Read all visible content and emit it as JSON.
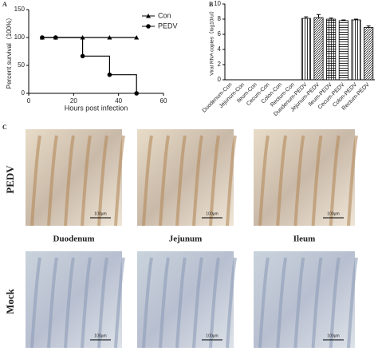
{
  "chart_data": [
    {
      "type": "line",
      "panel": "A",
      "step": true,
      "xlabel": "Hours post infection",
      "ylabel": "Percent survival（100%）",
      "xlim": [
        0,
        60
      ],
      "xticks": [
        0,
        20,
        40,
        60
      ],
      "ylim": [
        0,
        150
      ],
      "yticks": [
        0,
        50,
        100,
        150
      ],
      "legend": "top-right",
      "series": [
        {
          "name": "Con",
          "color": "#000000",
          "marker": "triangle",
          "x": [
            6,
            12,
            24,
            36,
            48
          ],
          "values": [
            100,
            100,
            100,
            100,
            100
          ]
        },
        {
          "name": "PEDV",
          "color": "#000000",
          "marker": "circle",
          "x": [
            6,
            12,
            24,
            36,
            48
          ],
          "values": [
            100,
            100,
            66.7,
            33.3,
            0
          ]
        }
      ]
    },
    {
      "type": "bar",
      "panel": "B",
      "ylabel": "Viral RNA copies（log10/ul）",
      "ylim": [
        0,
        10
      ],
      "yticks": [
        0,
        2,
        4,
        6,
        8,
        10
      ],
      "color": "#000000",
      "categories": [
        "Duodenum-Con",
        "Jejunum-Con",
        "Ileum-Con",
        "Cecum-Con",
        "Colon-Con",
        "Rectum-Con",
        "Duodenum-PEDV",
        "Jejunum-PEDV",
        "Ileum-PEDV",
        "Cecum-PEDV",
        "Colon-PEDV",
        "Rectum-PEDV"
      ],
      "values": [
        0,
        0,
        0,
        0,
        0,
        0,
        8.1,
        8.2,
        8.0,
        7.8,
        7.9,
        6.9
      ],
      "errors": [
        0,
        0,
        0,
        0,
        0,
        0,
        0.2,
        0.4,
        0.15,
        0.1,
        0.1,
        0.2
      ]
    }
  ],
  "panel_c": {
    "label": "C",
    "rows": [
      "PEDV",
      "Mock"
    ],
    "columns": [
      "Duodenum",
      "Jejunum",
      "Ileum"
    ],
    "scale_bar": "100μm"
  }
}
